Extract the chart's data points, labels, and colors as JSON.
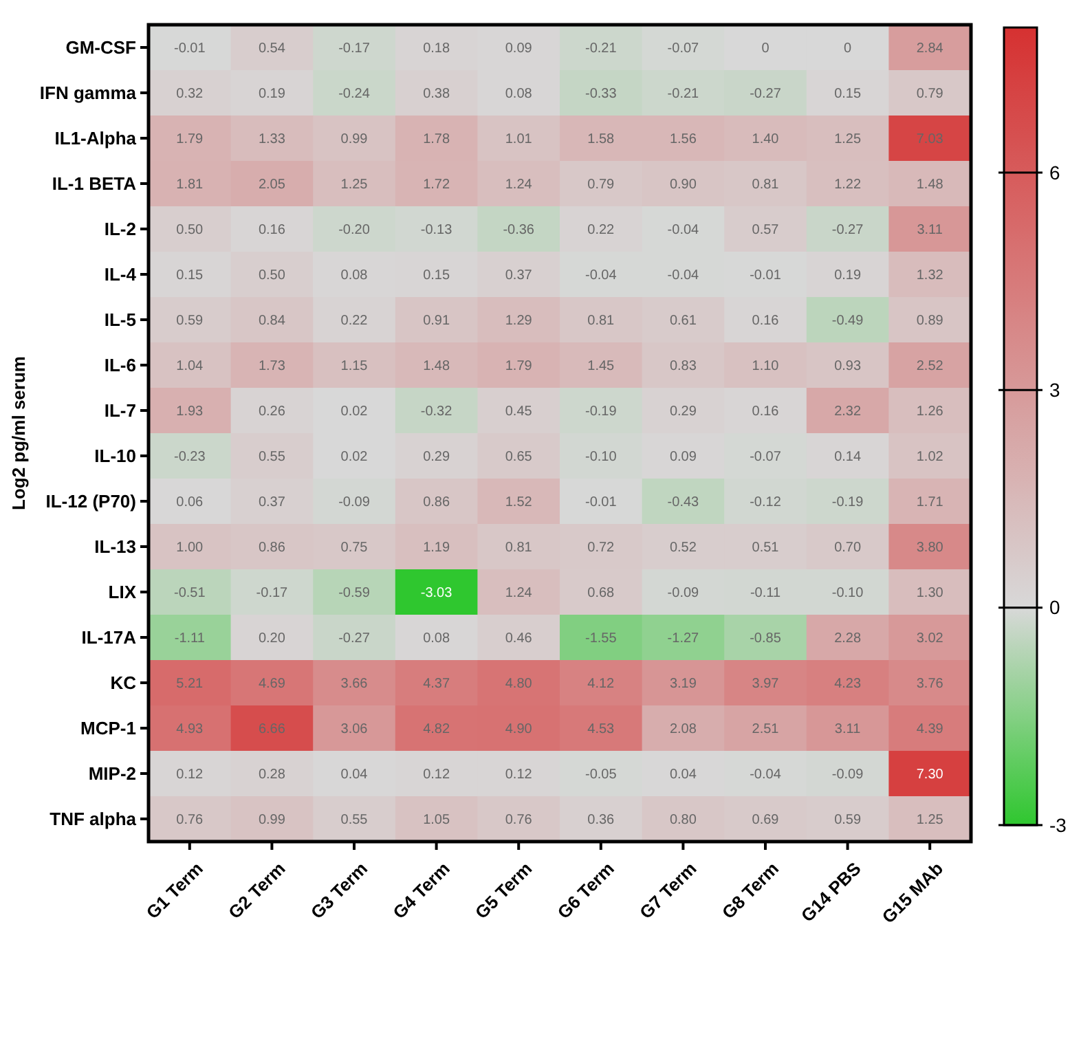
{
  "chart_data": {
    "type": "heatmap",
    "ylabel": "Log2 pg/ml serum",
    "categories": [
      "G1 Term",
      "G2 Term",
      "G3 Term",
      "G4 Term",
      "G5 Term",
      "G6 Term",
      "G7 Term",
      "G8 Term",
      "G14 PBS",
      "G15 MAb"
    ],
    "y_categories": [
      "GM-CSF",
      "IFN gamma",
      "IL1-Alpha",
      "IL-1 BETA",
      "IL-2",
      "IL-4",
      "IL-5",
      "IL-6",
      "IL-7",
      "IL-10",
      "IL-12 (P70)",
      "IL-13",
      "LIX",
      "IL-17A",
      "KC",
      "MCP-1",
      "MIP-2",
      "TNF alpha"
    ],
    "cells": [
      [
        -0.01,
        0.54,
        -0.17,
        0.18,
        0.09,
        -0.21,
        -0.07,
        0,
        0,
        2.84
      ],
      [
        0.32,
        0.19,
        -0.24,
        0.38,
        0.08,
        -0.33,
        -0.21,
        -0.27,
        0.15,
        0.79
      ],
      [
        1.79,
        1.33,
        0.99,
        1.78,
        1.01,
        1.58,
        1.56,
        1.4,
        1.25,
        7.03
      ],
      [
        1.81,
        2.05,
        1.25,
        1.72,
        1.24,
        0.79,
        0.9,
        0.81,
        1.22,
        1.48
      ],
      [
        0.5,
        0.16,
        -0.2,
        -0.13,
        -0.36,
        0.22,
        -0.04,
        0.57,
        -0.27,
        3.11
      ],
      [
        0.15,
        0.5,
        0.08,
        0.15,
        0.37,
        -0.04,
        -0.04,
        -0.01,
        0.19,
        1.32
      ],
      [
        0.59,
        0.84,
        0.22,
        0.91,
        1.29,
        0.81,
        0.61,
        0.16,
        -0.49,
        0.89
      ],
      [
        1.04,
        1.73,
        1.15,
        1.48,
        1.79,
        1.45,
        0.83,
        1.1,
        0.93,
        2.52
      ],
      [
        1.93,
        0.26,
        0.02,
        -0.32,
        0.45,
        -0.19,
        0.29,
        0.16,
        2.32,
        1.26
      ],
      [
        -0.23,
        0.55,
        0.02,
        0.29,
        0.65,
        -0.1,
        0.09,
        -0.07,
        0.14,
        1.02
      ],
      [
        0.06,
        0.37,
        -0.09,
        0.86,
        1.52,
        -0.01,
        -0.43,
        -0.12,
        -0.19,
        1.71
      ],
      [
        1.0,
        0.86,
        0.75,
        1.19,
        0.81,
        0.72,
        0.52,
        0.51,
        0.7,
        3.8
      ],
      [
        -0.51,
        -0.17,
        -0.59,
        -3.03,
        1.24,
        0.68,
        -0.09,
        -0.11,
        -0.1,
        1.3
      ],
      [
        -1.11,
        0.2,
        -0.27,
        0.08,
        0.46,
        -1.55,
        -1.27,
        -0.85,
        2.28,
        3.02
      ],
      [
        5.21,
        4.69,
        3.66,
        4.37,
        4.8,
        4.12,
        3.19,
        3.97,
        4.23,
        3.76
      ],
      [
        4.93,
        6.66,
        3.06,
        4.82,
        4.9,
        4.53,
        2.08,
        2.51,
        3.11,
        4.39
      ],
      [
        0.12,
        0.28,
        0.04,
        0.12,
        0.12,
        -0.05,
        0.04,
        -0.04,
        -0.09,
        7.3
      ],
      [
        0.76,
        0.99,
        0.55,
        1.05,
        0.76,
        0.36,
        0.8,
        0.69,
        0.59,
        1.25
      ]
    ],
    "cell_labels": [
      [
        "-0.01",
        "0.54",
        "-0.17",
        "0.18",
        "0.09",
        "-0.21",
        "-0.07",
        "0",
        "0",
        "2.84"
      ],
      [
        "0.32",
        "0.19",
        "-0.24",
        "0.38",
        "0.08",
        "-0.33",
        "-0.21",
        "-0.27",
        "0.15",
        "0.79"
      ],
      [
        "1.79",
        "1.33",
        "0.99",
        "1.78",
        "1.01",
        "1.58",
        "1.56",
        "1.40",
        "1.25",
        "7.03"
      ],
      [
        "1.81",
        "2.05",
        "1.25",
        "1.72",
        "1.24",
        "0.79",
        "0.90",
        "0.81",
        "1.22",
        "1.48"
      ],
      [
        "0.50",
        "0.16",
        "-0.20",
        "-0.13",
        "-0.36",
        "0.22",
        "-0.04",
        "0.57",
        "-0.27",
        "3.11"
      ],
      [
        "0.15",
        "0.50",
        "0.08",
        "0.15",
        "0.37",
        "-0.04",
        "-0.04",
        "-0.01",
        "0.19",
        "1.32"
      ],
      [
        "0.59",
        "0.84",
        "0.22",
        "0.91",
        "1.29",
        "0.81",
        "0.61",
        "0.16",
        "-0.49",
        "0.89"
      ],
      [
        "1.04",
        "1.73",
        "1.15",
        "1.48",
        "1.79",
        "1.45",
        "0.83",
        "1.10",
        "0.93",
        "2.52"
      ],
      [
        "1.93",
        "0.26",
        "0.02",
        "-0.32",
        "0.45",
        "-0.19",
        "0.29",
        "0.16",
        "2.32",
        "1.26"
      ],
      [
        "-0.23",
        "0.55",
        "0.02",
        "0.29",
        "0.65",
        "-0.10",
        "0.09",
        "-0.07",
        "0.14",
        "1.02"
      ],
      [
        "0.06",
        "0.37",
        "-0.09",
        "0.86",
        "1.52",
        "-0.01",
        "-0.43",
        "-0.12",
        "-0.19",
        "1.71"
      ],
      [
        "1.00",
        "0.86",
        "0.75",
        "1.19",
        "0.81",
        "0.72",
        "0.52",
        "0.51",
        "0.70",
        "3.80"
      ],
      [
        "-0.51",
        "-0.17",
        "-0.59",
        "-3.03",
        "1.24",
        "0.68",
        "-0.09",
        "-0.11",
        "-0.10",
        "1.30"
      ],
      [
        "-1.11",
        "0.20",
        "-0.27",
        "0.08",
        "0.46",
        "-1.55",
        "-1.27",
        "-0.85",
        "2.28",
        "3.02"
      ],
      [
        "5.21",
        "4.69",
        "3.66",
        "4.37",
        "4.80",
        "4.12",
        "3.19",
        "3.97",
        "4.23",
        "3.76"
      ],
      [
        "4.93",
        "6.66",
        "3.06",
        "4.82",
        "4.90",
        "4.53",
        "2.08",
        "2.51",
        "3.11",
        "4.39"
      ],
      [
        "0.12",
        "0.28",
        "0.04",
        "0.12",
        "0.12",
        "-0.05",
        "0.04",
        "-0.04",
        "-0.09",
        "7.30"
      ],
      [
        "0.76",
        "0.99",
        "0.55",
        "1.05",
        "0.76",
        "0.36",
        "0.80",
        "0.69",
        "0.59",
        "1.25"
      ]
    ],
    "colors": [
      "#2fc72f",
      "#d8d8d8",
      "#d63131"
    ],
    "clim": [
      -3,
      8
    ],
    "cticks": [
      -3,
      0,
      3,
      6
    ]
  }
}
